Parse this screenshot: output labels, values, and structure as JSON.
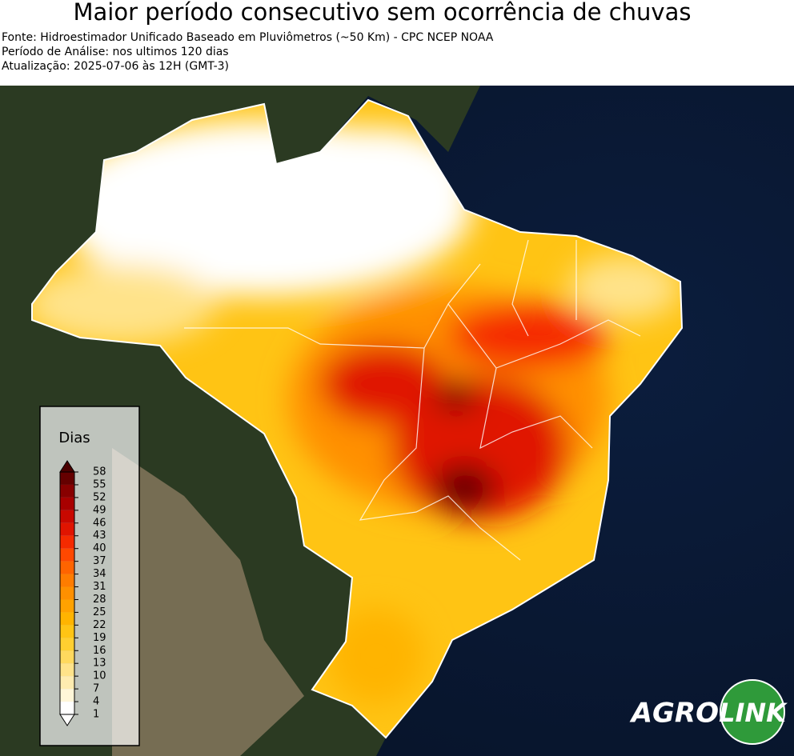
{
  "header": {
    "title": "Maior período consecutivo sem ocorrência de chuvas",
    "lines": [
      "Fonte: Hidroestimador Unificado Baseado em Pluviômetros (~50 Km) - CPC NCEP NOAA",
      "Período de Análise: nos ultimos 120 dias",
      "Atualização: 2025-07-06 às 12H (GMT-3)"
    ]
  },
  "legend": {
    "title": "Dias",
    "ticks": [
      1,
      4,
      7,
      10,
      13,
      16,
      19,
      22,
      25,
      28,
      31,
      34,
      37,
      40,
      43,
      46,
      49,
      52,
      55,
      58
    ],
    "colors": [
      "#ffffff",
      "#fff6d8",
      "#ffecb0",
      "#ffe38a",
      "#ffd95e",
      "#ffcf30",
      "#ffc414",
      "#ffb400",
      "#ffa200",
      "#ff9000",
      "#ff7c00",
      "#ff6400",
      "#ff4800",
      "#f52a00",
      "#e01400",
      "#c80800",
      "#a80000",
      "#880000",
      "#650000"
    ],
    "under_color": "#ffffff",
    "over_color": "#4a0000"
  },
  "logo": {
    "left": "AGRO",
    "right": "LINK"
  }
}
